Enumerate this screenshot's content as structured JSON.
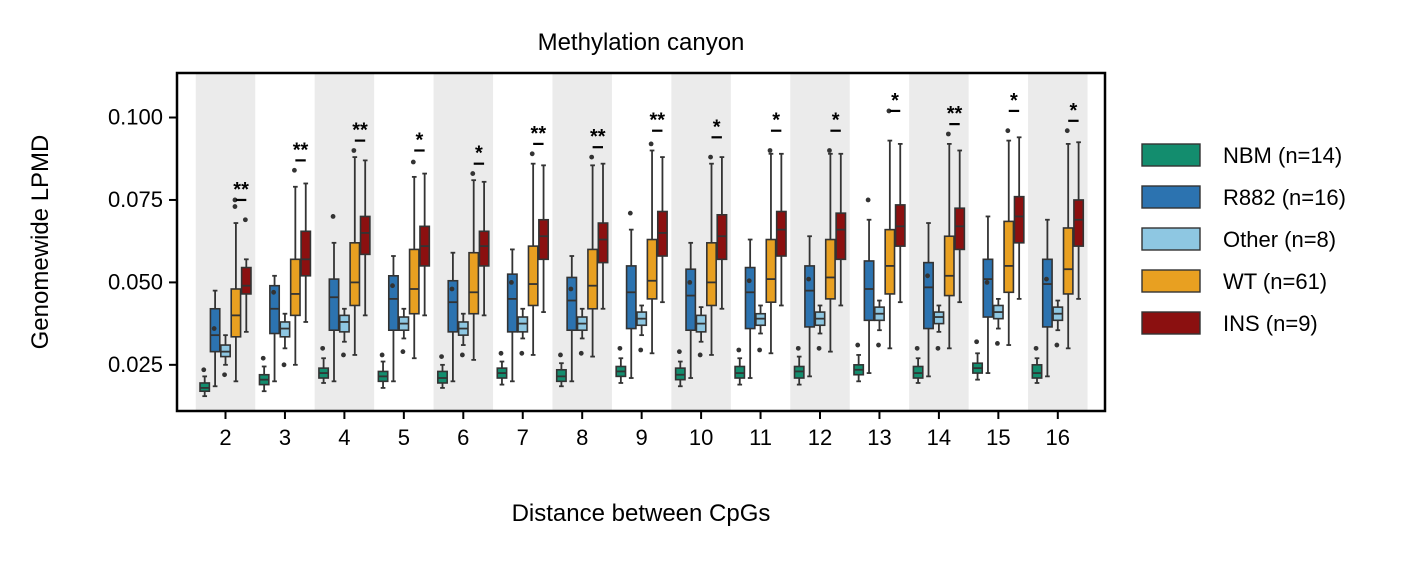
{
  "chart_data": {
    "type": "box",
    "title": "Methylation canyon",
    "xlabel": "Distance between CpGs",
    "ylabel": "Genomewide LPMD",
    "ylim": [
      0.011,
      0.1135
    ],
    "yticks": [
      0.025,
      0.05,
      0.075,
      0.1
    ],
    "ytick_labels": [
      "0.025",
      "0.050",
      "0.075",
      "0.100"
    ],
    "categories": [
      "2",
      "3",
      "4",
      "5",
      "6",
      "7",
      "8",
      "9",
      "10",
      "11",
      "12",
      "13",
      "14",
      "15",
      "16"
    ],
    "shaded_background": "alternating grey bands behind even-indexed categories",
    "shade_color": "#ebebeb",
    "legend_position": "right",
    "series": [
      {
        "name": "NBM (n=14)",
        "color": "#138d6e",
        "boxes": [
          {
            "q1": 0.017,
            "med": 0.018,
            "q3": 0.0195,
            "wlo": 0.0155,
            "whi": 0.0215,
            "out": [
              0.0235
            ]
          },
          {
            "q1": 0.019,
            "med": 0.0205,
            "q3": 0.022,
            "wlo": 0.017,
            "whi": 0.0245,
            "out": [
              0.027
            ]
          },
          {
            "q1": 0.021,
            "med": 0.0225,
            "q3": 0.024,
            "wlo": 0.0195,
            "whi": 0.027,
            "out": [
              0.03
            ]
          },
          {
            "q1": 0.02,
            "med": 0.0215,
            "q3": 0.023,
            "wlo": 0.018,
            "whi": 0.026,
            "out": [
              0.028
            ]
          },
          {
            "q1": 0.0195,
            "med": 0.021,
            "q3": 0.023,
            "wlo": 0.018,
            "whi": 0.025,
            "out": [
              0.0275
            ]
          },
          {
            "q1": 0.021,
            "med": 0.0225,
            "q3": 0.024,
            "wlo": 0.019,
            "whi": 0.026,
            "out": [
              0.0285
            ]
          },
          {
            "q1": 0.02,
            "med": 0.0215,
            "q3": 0.0235,
            "wlo": 0.0185,
            "whi": 0.0255,
            "out": [
              0.028
            ]
          },
          {
            "q1": 0.0215,
            "med": 0.023,
            "q3": 0.0245,
            "wlo": 0.0195,
            "whi": 0.027,
            "out": [
              0.03
            ]
          },
          {
            "q1": 0.0205,
            "med": 0.022,
            "q3": 0.024,
            "wlo": 0.0185,
            "whi": 0.026,
            "out": [
              0.029
            ]
          },
          {
            "q1": 0.021,
            "med": 0.0225,
            "q3": 0.0245,
            "wlo": 0.019,
            "whi": 0.027,
            "out": [
              0.0295
            ]
          },
          {
            "q1": 0.021,
            "med": 0.023,
            "q3": 0.0245,
            "wlo": 0.019,
            "whi": 0.0275,
            "out": [
              0.03
            ]
          },
          {
            "q1": 0.022,
            "med": 0.0235,
            "q3": 0.025,
            "wlo": 0.02,
            "whi": 0.028,
            "out": [
              0.031
            ]
          },
          {
            "q1": 0.021,
            "med": 0.0225,
            "q3": 0.0245,
            "wlo": 0.0195,
            "whi": 0.027,
            "out": [
              0.03
            ]
          },
          {
            "q1": 0.0225,
            "med": 0.024,
            "q3": 0.0255,
            "wlo": 0.0205,
            "whi": 0.0285,
            "out": [
              0.032
            ]
          },
          {
            "q1": 0.021,
            "med": 0.0225,
            "q3": 0.025,
            "wlo": 0.0195,
            "whi": 0.027,
            "out": [
              0.03
            ]
          }
        ]
      },
      {
        "name": "R882 (n=16)",
        "color": "#2c73b0",
        "boxes": [
          {
            "q1": 0.029,
            "med": 0.034,
            "q3": 0.042,
            "wlo": 0.0185,
            "whi": 0.0475,
            "out": [
              0.036
            ]
          },
          {
            "q1": 0.0345,
            "med": 0.042,
            "q3": 0.049,
            "wlo": 0.02,
            "whi": 0.052,
            "out": [
              0.047
            ]
          },
          {
            "q1": 0.0355,
            "med": 0.0455,
            "q3": 0.051,
            "wlo": 0.02,
            "whi": 0.062,
            "out": [
              0.07
            ]
          },
          {
            "q1": 0.0355,
            "med": 0.045,
            "q3": 0.052,
            "wlo": 0.02,
            "whi": 0.058,
            "out": [
              0.049
            ]
          },
          {
            "q1": 0.035,
            "med": 0.044,
            "q3": 0.0505,
            "wlo": 0.02,
            "whi": 0.059,
            "out": [
              0.048
            ]
          },
          {
            "q1": 0.035,
            "med": 0.045,
            "q3": 0.0525,
            "wlo": 0.02,
            "whi": 0.06,
            "out": [
              0.05
            ]
          },
          {
            "q1": 0.0355,
            "med": 0.0445,
            "q3": 0.0515,
            "wlo": 0.02,
            "whi": 0.058,
            "out": [
              0.048
            ]
          },
          {
            "q1": 0.036,
            "med": 0.047,
            "q3": 0.055,
            "wlo": 0.021,
            "whi": 0.066,
            "out": [
              0.071
            ]
          },
          {
            "q1": 0.0355,
            "med": 0.046,
            "q3": 0.054,
            "wlo": 0.021,
            "whi": 0.062,
            "out": [
              0.05
            ]
          },
          {
            "q1": 0.036,
            "med": 0.047,
            "q3": 0.0545,
            "wlo": 0.021,
            "whi": 0.063,
            "out": [
              0.0505
            ]
          },
          {
            "q1": 0.0365,
            "med": 0.0475,
            "q3": 0.055,
            "wlo": 0.0215,
            "whi": 0.064,
            "out": [
              0.051
            ]
          },
          {
            "q1": 0.0385,
            "med": 0.048,
            "q3": 0.0565,
            "wlo": 0.0225,
            "whi": 0.069,
            "out": [
              0.075
            ]
          },
          {
            "q1": 0.036,
            "med": 0.0485,
            "q3": 0.056,
            "wlo": 0.0215,
            "whi": 0.068,
            "out": [
              0.052
            ]
          },
          {
            "q1": 0.0395,
            "med": 0.051,
            "q3": 0.057,
            "wlo": 0.0225,
            "whi": 0.07,
            "out": [
              0.05
            ]
          },
          {
            "q1": 0.0365,
            "med": 0.0495,
            "q3": 0.057,
            "wlo": 0.0215,
            "whi": 0.069,
            "out": [
              0.051
            ]
          }
        ]
      },
      {
        "name": "Other (n=8)",
        "color": "#8ec7e2",
        "boxes": [
          {
            "q1": 0.0275,
            "med": 0.029,
            "q3": 0.031,
            "wlo": 0.025,
            "whi": 0.034,
            "out": [
              0.022
            ]
          },
          {
            "q1": 0.0335,
            "med": 0.036,
            "q3": 0.038,
            "wlo": 0.03,
            "whi": 0.0405,
            "out": [
              0.025
            ]
          },
          {
            "q1": 0.035,
            "med": 0.038,
            "q3": 0.04,
            "wlo": 0.032,
            "whi": 0.042,
            "out": [
              0.028
            ]
          },
          {
            "q1": 0.0355,
            "med": 0.0375,
            "q3": 0.0395,
            "wlo": 0.033,
            "whi": 0.042,
            "out": [
              0.029
            ]
          },
          {
            "q1": 0.034,
            "med": 0.036,
            "q3": 0.038,
            "wlo": 0.031,
            "whi": 0.0405,
            "out": [
              0.028
            ]
          },
          {
            "q1": 0.035,
            "med": 0.0375,
            "q3": 0.0395,
            "wlo": 0.033,
            "whi": 0.042,
            "out": [
              0.0285
            ]
          },
          {
            "q1": 0.0355,
            "med": 0.0375,
            "q3": 0.0395,
            "wlo": 0.033,
            "whi": 0.042,
            "out": [
              0.0285
            ]
          },
          {
            "q1": 0.037,
            "med": 0.039,
            "q3": 0.041,
            "wlo": 0.034,
            "whi": 0.043,
            "out": [
              0.0295
            ]
          },
          {
            "q1": 0.035,
            "med": 0.0375,
            "q3": 0.04,
            "wlo": 0.032,
            "whi": 0.0425,
            "out": [
              0.028
            ]
          },
          {
            "q1": 0.037,
            "med": 0.039,
            "q3": 0.0405,
            "wlo": 0.0345,
            "whi": 0.043,
            "out": [
              0.0295
            ]
          },
          {
            "q1": 0.037,
            "med": 0.039,
            "q3": 0.041,
            "wlo": 0.0345,
            "whi": 0.043,
            "out": [
              0.03
            ]
          },
          {
            "q1": 0.0385,
            "med": 0.0405,
            "q3": 0.0425,
            "wlo": 0.0355,
            "whi": 0.0445,
            "out": [
              0.031
            ]
          },
          {
            "q1": 0.0375,
            "med": 0.0395,
            "q3": 0.041,
            "wlo": 0.035,
            "whi": 0.043,
            "out": [
              0.03
            ]
          },
          {
            "q1": 0.039,
            "med": 0.041,
            "q3": 0.043,
            "wlo": 0.036,
            "whi": 0.045,
            "out": [
              0.0315
            ]
          },
          {
            "q1": 0.0385,
            "med": 0.0405,
            "q3": 0.0425,
            "wlo": 0.0355,
            "whi": 0.0445,
            "out": [
              0.031
            ]
          }
        ]
      },
      {
        "name": "WT (n=61)",
        "color": "#e8a021",
        "boxes": [
          {
            "q1": 0.0335,
            "med": 0.04,
            "q3": 0.048,
            "wlo": 0.02,
            "whi": 0.068,
            "out": [
              0.075,
              0.073
            ]
          },
          {
            "q1": 0.04,
            "med": 0.0465,
            "q3": 0.057,
            "wlo": 0.025,
            "whi": 0.079,
            "out": [
              0.084
            ]
          },
          {
            "q1": 0.043,
            "med": 0.05,
            "q3": 0.062,
            "wlo": 0.028,
            "whi": 0.088,
            "out": [
              0.09
            ]
          },
          {
            "q1": 0.0405,
            "med": 0.048,
            "q3": 0.06,
            "wlo": 0.027,
            "whi": 0.082,
            "out": [
              0.0865
            ]
          },
          {
            "q1": 0.0405,
            "med": 0.047,
            "q3": 0.059,
            "wlo": 0.0265,
            "whi": 0.081,
            "out": [
              0.083
            ]
          },
          {
            "q1": 0.043,
            "med": 0.0495,
            "q3": 0.061,
            "wlo": 0.028,
            "whi": 0.086,
            "out": [
              0.089
            ]
          },
          {
            "q1": 0.042,
            "med": 0.049,
            "q3": 0.06,
            "wlo": 0.0275,
            "whi": 0.0855,
            "out": [
              0.088
            ]
          },
          {
            "q1": 0.045,
            "med": 0.0505,
            "q3": 0.063,
            "wlo": 0.0285,
            "whi": 0.09,
            "out": [
              0.092
            ]
          },
          {
            "q1": 0.043,
            "med": 0.05,
            "q3": 0.062,
            "wlo": 0.028,
            "whi": 0.086,
            "out": [
              0.088
            ]
          },
          {
            "q1": 0.044,
            "med": 0.051,
            "q3": 0.063,
            "wlo": 0.0285,
            "whi": 0.089,
            "out": [
              0.09
            ]
          },
          {
            "q1": 0.045,
            "med": 0.0515,
            "q3": 0.063,
            "wlo": 0.029,
            "whi": 0.089,
            "out": [
              0.09
            ]
          },
          {
            "q1": 0.0465,
            "med": 0.055,
            "q3": 0.066,
            "wlo": 0.03,
            "whi": 0.093,
            "out": [
              0.102
            ]
          },
          {
            "q1": 0.046,
            "med": 0.052,
            "q3": 0.064,
            "wlo": 0.03,
            "whi": 0.092,
            "out": [
              0.095
            ]
          },
          {
            "q1": 0.047,
            "med": 0.055,
            "q3": 0.0685,
            "wlo": 0.031,
            "whi": 0.093,
            "out": [
              0.096
            ]
          },
          {
            "q1": 0.0465,
            "med": 0.054,
            "q3": 0.0665,
            "wlo": 0.03,
            "whi": 0.092,
            "out": [
              0.096
            ]
          }
        ]
      },
      {
        "name": "INS (n=9)",
        "color": "#8b1010",
        "boxes": [
          {
            "q1": 0.0465,
            "med": 0.049,
            "q3": 0.0545,
            "wlo": 0.035,
            "whi": 0.057,
            "out": [
              0.069
            ]
          },
          {
            "q1": 0.052,
            "med": 0.057,
            "q3": 0.0655,
            "wlo": 0.038,
            "whi": 0.08,
            "out": []
          },
          {
            "q1": 0.0585,
            "med": 0.065,
            "q3": 0.07,
            "wlo": 0.04,
            "whi": 0.087,
            "out": []
          },
          {
            "q1": 0.055,
            "med": 0.061,
            "q3": 0.067,
            "wlo": 0.04,
            "whi": 0.083,
            "out": []
          },
          {
            "q1": 0.055,
            "med": 0.061,
            "q3": 0.0655,
            "wlo": 0.04,
            "whi": 0.0805,
            "out": []
          },
          {
            "q1": 0.057,
            "med": 0.064,
            "q3": 0.069,
            "wlo": 0.041,
            "whi": 0.0855,
            "out": []
          },
          {
            "q1": 0.056,
            "med": 0.063,
            "q3": 0.068,
            "wlo": 0.042,
            "whi": 0.086,
            "out": []
          },
          {
            "q1": 0.058,
            "med": 0.065,
            "q3": 0.0715,
            "wlo": 0.044,
            "whi": 0.088,
            "out": []
          },
          {
            "q1": 0.057,
            "med": 0.064,
            "q3": 0.0705,
            "wlo": 0.042,
            "whi": 0.088,
            "out": []
          },
          {
            "q1": 0.058,
            "med": 0.066,
            "q3": 0.0715,
            "wlo": 0.043,
            "whi": 0.089,
            "out": []
          },
          {
            "q1": 0.057,
            "med": 0.066,
            "q3": 0.071,
            "wlo": 0.043,
            "whi": 0.089,
            "out": []
          },
          {
            "q1": 0.061,
            "med": 0.067,
            "q3": 0.0735,
            "wlo": 0.044,
            "whi": 0.092,
            "out": []
          },
          {
            "q1": 0.06,
            "med": 0.067,
            "q3": 0.0725,
            "wlo": 0.044,
            "whi": 0.09,
            "out": []
          },
          {
            "q1": 0.062,
            "med": 0.07,
            "q3": 0.076,
            "wlo": 0.045,
            "whi": 0.094,
            "out": []
          },
          {
            "q1": 0.061,
            "med": 0.069,
            "q3": 0.075,
            "wlo": 0.045,
            "whi": 0.0925,
            "out": []
          }
        ]
      }
    ],
    "significance": [
      {
        "category": "2",
        "label": "**",
        "y": 0.075
      },
      {
        "category": "3",
        "label": "**",
        "y": 0.087
      },
      {
        "category": "4",
        "label": "**",
        "y": 0.093
      },
      {
        "category": "5",
        "label": "*",
        "y": 0.09
      },
      {
        "category": "6",
        "label": "*",
        "y": 0.086
      },
      {
        "category": "7",
        "label": "**",
        "y": 0.092
      },
      {
        "category": "8",
        "label": "**",
        "y": 0.091
      },
      {
        "category": "9",
        "label": "**",
        "y": 0.096
      },
      {
        "category": "10",
        "label": "*",
        "y": 0.094
      },
      {
        "category": "11",
        "label": "*",
        "y": 0.096
      },
      {
        "category": "12",
        "label": "*",
        "y": 0.096
      },
      {
        "category": "13",
        "label": "*",
        "y": 0.102
      },
      {
        "category": "14",
        "label": "**",
        "y": 0.098
      },
      {
        "category": "15",
        "label": "*",
        "y": 0.102
      },
      {
        "category": "16",
        "label": "*",
        "y": 0.099
      }
    ]
  }
}
